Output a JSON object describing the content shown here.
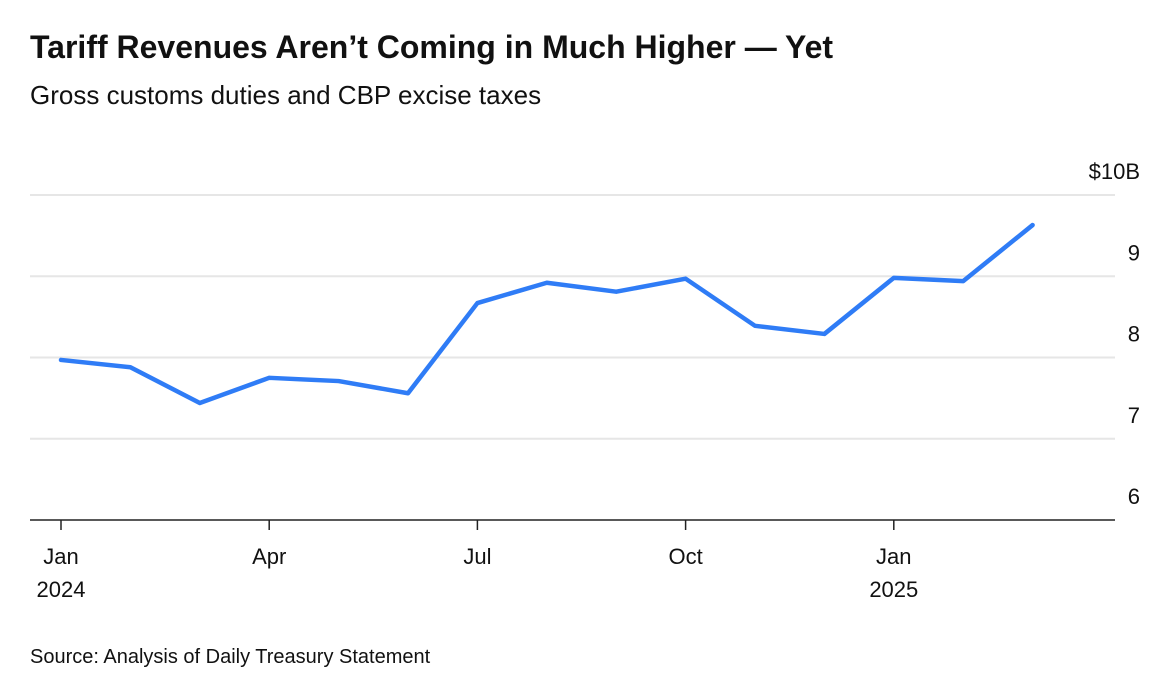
{
  "chart_data": {
    "type": "line",
    "title": "Tariff Revenues Aren’t Coming in Much Higher — Yet",
    "subtitle": "Gross customs duties and CBP excise taxes",
    "source": "Source: Analysis of Daily Treasury Statement",
    "x": [
      "2024-01",
      "2024-02",
      "2024-03",
      "2024-04",
      "2024-05",
      "2024-06",
      "2024-07",
      "2024-08",
      "2024-09",
      "2024-10",
      "2024-11",
      "2024-12",
      "2025-01",
      "2025-02",
      "2025-03"
    ],
    "xticks": [
      {
        "value": "2024-01",
        "label": "Jan",
        "year": "2024"
      },
      {
        "value": "2024-04",
        "label": "Apr"
      },
      {
        "value": "2024-07",
        "label": "Jul"
      },
      {
        "value": "2024-10",
        "label": "Oct"
      },
      {
        "value": "2025-01",
        "label": "Jan",
        "year": "2025"
      }
    ],
    "series": [
      {
        "name": "Gross customs duties and CBP excise taxes",
        "color": "#2f7cf6",
        "values": [
          7.97,
          7.88,
          7.44,
          7.75,
          7.71,
          7.56,
          8.67,
          8.92,
          8.81,
          8.97,
          8.39,
          8.29,
          8.98,
          8.94,
          9.63
        ]
      }
    ],
    "ylim": [
      6,
      10
    ],
    "yticks": [
      6,
      7,
      8,
      9,
      {
        "value": 10,
        "label": "$10B"
      }
    ],
    "grid": true
  }
}
